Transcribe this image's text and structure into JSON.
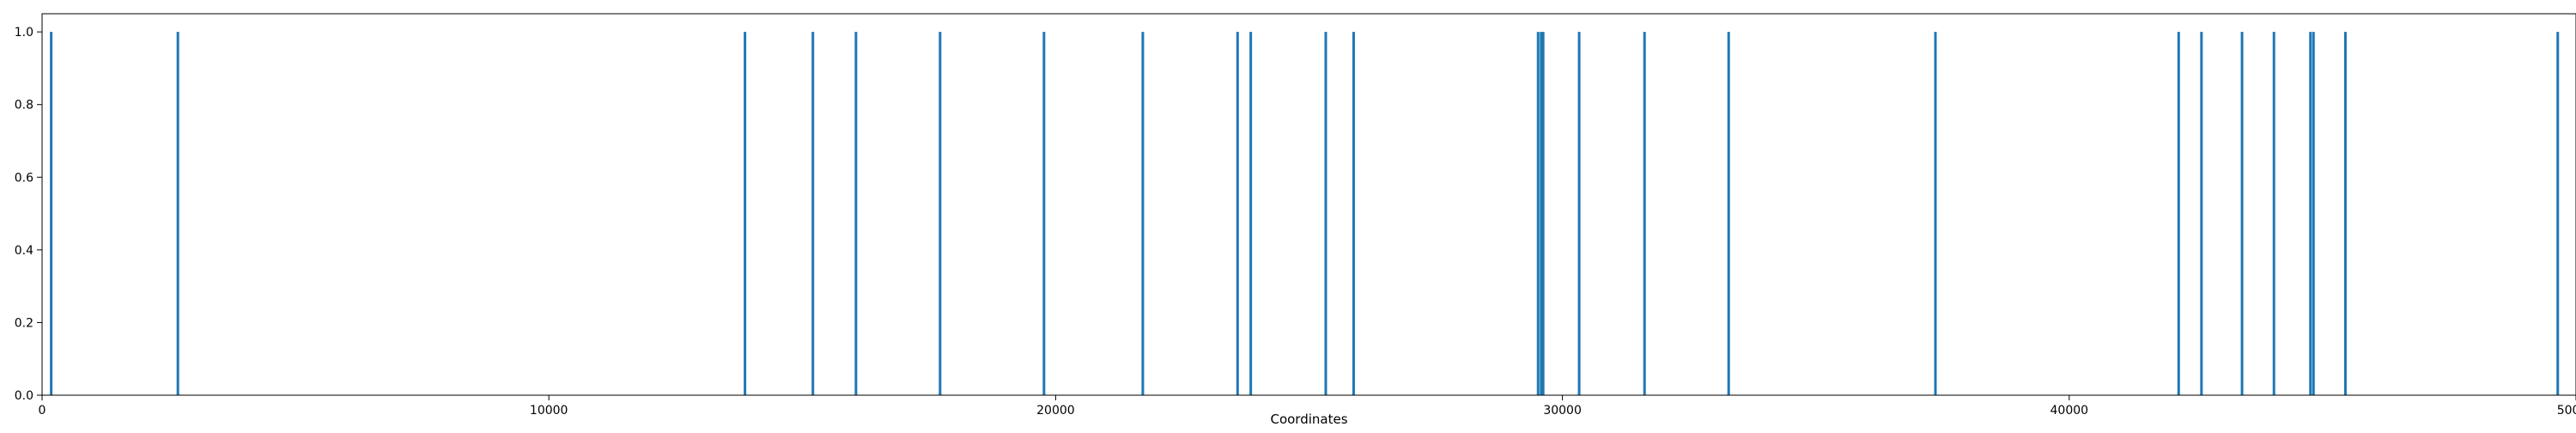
{
  "chart_data": {
    "type": "bar",
    "title": "",
    "xlabel": "Coordinates",
    "ylabel": "",
    "xlim": [
      0,
      50000
    ],
    "ylim": [
      0,
      1.05
    ],
    "grid": false,
    "legend": "none",
    "bar_color": "#1f77b4",
    "x_ticks": [
      0,
      10000,
      20000,
      30000,
      40000,
      50000
    ],
    "x_tick_labels": [
      "0",
      "10000",
      "20000",
      "30000",
      "40000",
      "50000"
    ],
    "y_ticks": [
      0.0,
      0.2,
      0.4,
      0.6,
      0.8,
      1.0
    ],
    "y_tick_labels": [
      "0.0",
      "0.2",
      "0.4",
      "0.6",
      "0.8",
      "1.0"
    ],
    "x": [
      180,
      2680,
      13870,
      15210,
      16060,
      17720,
      19770,
      21720,
      23590,
      23850,
      25330,
      25880,
      29520,
      29580,
      29620,
      30330,
      31620,
      33280,
      37360,
      42160,
      42610,
      43410,
      44040,
      44760,
      44820,
      45450,
      49640
    ],
    "values": [
      1,
      1,
      1,
      1,
      1,
      1,
      1,
      1,
      1,
      1,
      1,
      1,
      1,
      1,
      1,
      1,
      1,
      1,
      1,
      1,
      1,
      1,
      1,
      1,
      1,
      1,
      1
    ]
  }
}
